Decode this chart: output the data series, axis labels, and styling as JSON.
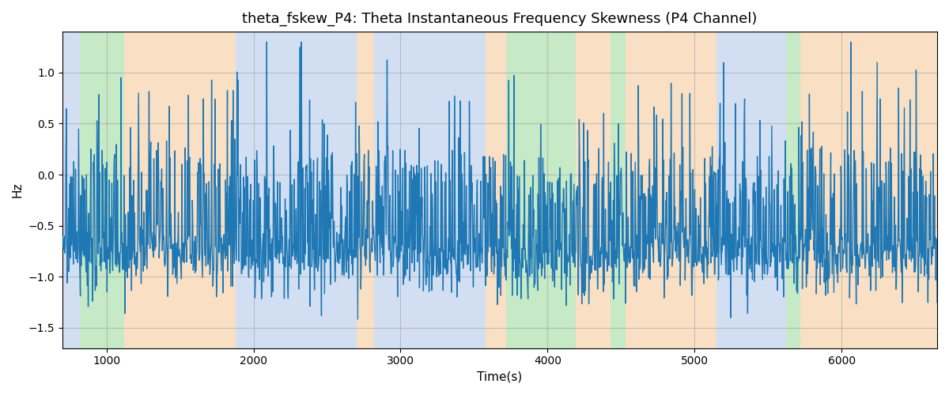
{
  "title": "theta_fskew_P4: Theta Instantaneous Frequency Skewness (P4 Channel)",
  "xlabel": "Time(s)",
  "ylabel": "Hz",
  "ylim": [
    -1.7,
    1.4
  ],
  "xlim": [
    700,
    6650
  ],
  "bg_regions": [
    {
      "xstart": 700,
      "xend": 820,
      "color": "#aec6e8"
    },
    {
      "xstart": 820,
      "xend": 1120,
      "color": "#98d898"
    },
    {
      "xstart": 1120,
      "xend": 1880,
      "color": "#f5c894"
    },
    {
      "xstart": 1880,
      "xend": 2700,
      "color": "#aec6e8"
    },
    {
      "xstart": 2700,
      "xend": 2820,
      "color": "#f5c894"
    },
    {
      "xstart": 2820,
      "xend": 3580,
      "color": "#aec6e8"
    },
    {
      "xstart": 3580,
      "xend": 3720,
      "color": "#f5c894"
    },
    {
      "xstart": 3720,
      "xend": 4190,
      "color": "#98d898"
    },
    {
      "xstart": 4190,
      "xend": 4430,
      "color": "#f5c894"
    },
    {
      "xstart": 4430,
      "xend": 4530,
      "color": "#98d898"
    },
    {
      "xstart": 4530,
      "xend": 5150,
      "color": "#f5c894"
    },
    {
      "xstart": 5150,
      "xend": 5620,
      "color": "#aec6e8"
    },
    {
      "xstart": 5620,
      "xend": 5720,
      "color": "#98d898"
    },
    {
      "xstart": 5720,
      "xend": 6650,
      "color": "#f5c894"
    }
  ],
  "line_color": "#1f77b4",
  "line_width": 1.0,
  "grid_color": "#999999",
  "grid_alpha": 0.5,
  "title_fontsize": 13,
  "label_fontsize": 11,
  "tick_fontsize": 10,
  "bg_alpha": 0.55
}
